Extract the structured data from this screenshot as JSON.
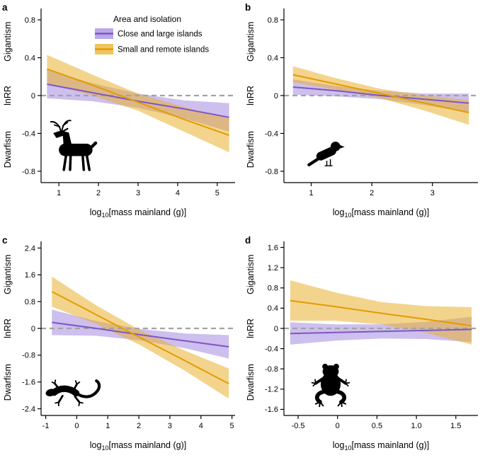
{
  "legend": {
    "title": "Area and isolation",
    "entries": [
      {
        "name": "close",
        "label": "Close and large islands"
      },
      {
        "name": "small",
        "label": "Small and remote islands"
      }
    ]
  },
  "colors": {
    "close_line": "#7f56c5",
    "close_band": "#a48be0",
    "small_line": "#e39c00",
    "small_band": "#eab02f",
    "zero_line": "#a3a3a3",
    "axis": "#000000",
    "silhouette": "#000000"
  },
  "axes": {
    "y_label_top": "Gigantism",
    "y_label_mid": "lnRR",
    "y_label_bottom": "Dwarfism",
    "x_label_pre": "log",
    "x_label_sub": "10",
    "x_label_post": "[mass mainland (g)]"
  },
  "chart_data": [
    {
      "type": "line",
      "panel": "a",
      "animal": "deer",
      "legend": true,
      "xlim": [
        0.55,
        5.45
      ],
      "ylim": [
        -0.92,
        0.92
      ],
      "xticks": {
        "values": [
          1,
          2,
          3,
          4,
          5
        ],
        "labels": [
          "1",
          "2",
          "3",
          "4",
          "5"
        ]
      },
      "yticks": {
        "values": [
          -0.8,
          -0.4,
          0,
          0.4,
          0.8
        ],
        "labels": [
          "-0.8",
          "-0.4",
          "0",
          "0.4",
          "0.8"
        ]
      },
      "x": [
        0.7,
        1.85,
        3.0,
        4.15,
        5.3
      ],
      "series": [
        {
          "name": "close",
          "y": [
            0.12,
            0.03,
            -0.06,
            -0.14,
            -0.23
          ],
          "upper": [
            0.27,
            0.13,
            0.02,
            -0.05,
            -0.08
          ],
          "lower": [
            -0.03,
            -0.06,
            -0.13,
            -0.24,
            -0.38
          ]
        },
        {
          "name": "small",
          "y": [
            0.28,
            0.11,
            -0.07,
            -0.25,
            -0.42
          ],
          "upper": [
            0.43,
            0.22,
            0.02,
            -0.12,
            -0.24
          ],
          "lower": [
            0.13,
            0.0,
            -0.16,
            -0.38,
            -0.6
          ]
        }
      ]
    },
    {
      "type": "line",
      "panel": "b",
      "animal": "bird",
      "legend": false,
      "xlim": [
        0.55,
        3.75
      ],
      "ylim": [
        -0.92,
        0.92
      ],
      "xticks": {
        "values": [
          1,
          2,
          3
        ],
        "labels": [
          "1",
          "2",
          "3"
        ]
      },
      "yticks": {
        "values": [
          -0.8,
          -0.4,
          0,
          0.4,
          0.8
        ],
        "labels": [
          "-0.8",
          "-0.4",
          "0",
          "0.4",
          "0.8"
        ]
      },
      "x": [
        0.7,
        1.425,
        2.15,
        2.875,
        3.6
      ],
      "series": [
        {
          "name": "close",
          "y": [
            0.09,
            0.05,
            0.0,
            -0.04,
            -0.08
          ],
          "upper": [
            0.17,
            0.1,
            0.05,
            0.02,
            0.02
          ],
          "lower": [
            0.01,
            -0.01,
            -0.04,
            -0.1,
            -0.18
          ]
        },
        {
          "name": "small",
          "y": [
            0.22,
            0.12,
            0.02,
            -0.08,
            -0.18
          ],
          "upper": [
            0.31,
            0.18,
            0.07,
            0.0,
            -0.05
          ],
          "lower": [
            0.14,
            0.06,
            -0.03,
            -0.16,
            -0.31
          ]
        }
      ]
    },
    {
      "type": "line",
      "panel": "c",
      "animal": "lizard",
      "legend": false,
      "xlim": [
        -1.15,
        5.1
      ],
      "ylim": [
        -2.6,
        2.6
      ],
      "xticks": {
        "values": [
          -1,
          0,
          1,
          2,
          3,
          4,
          5
        ],
        "labels": [
          "-1",
          "0",
          "1",
          "2",
          "3",
          "4",
          "5"
        ]
      },
      "yticks": {
        "values": [
          -2.4,
          -1.6,
          -0.8,
          0,
          0.8,
          1.6,
          2.4
        ],
        "labels": [
          "-2.4",
          "-1.6",
          "-0.8",
          "0",
          "0.8",
          "1.6",
          "2.4"
        ]
      },
      "x": [
        -0.8,
        0.625,
        2.05,
        3.475,
        4.9
      ],
      "series": [
        {
          "name": "close",
          "y": [
            0.18,
            0.0,
            -0.19,
            -0.37,
            -0.55
          ],
          "upper": [
            0.56,
            0.22,
            -0.02,
            -0.15,
            -0.2
          ],
          "lower": [
            -0.2,
            -0.22,
            -0.36,
            -0.59,
            -0.9
          ]
        },
        {
          "name": "small",
          "y": [
            1.1,
            0.41,
            -0.28,
            -0.96,
            -1.65
          ],
          "upper": [
            1.55,
            0.69,
            -0.06,
            -0.66,
            -1.2
          ],
          "lower": [
            0.65,
            0.13,
            -0.5,
            -1.26,
            -2.1
          ]
        }
      ]
    },
    {
      "type": "line",
      "panel": "d",
      "animal": "frog",
      "legend": false,
      "xlim": [
        -0.68,
        1.78
      ],
      "ylim": [
        -1.72,
        1.72
      ],
      "xticks": {
        "values": [
          -0.5,
          0,
          0.5,
          1,
          1.5
        ],
        "labels": [
          "-0.5",
          "0",
          "0.5",
          "1.0",
          "1.5"
        ]
      },
      "yticks": {
        "values": [
          -1.6,
          -1.2,
          -0.8,
          -0.4,
          0,
          0.4,
          0.8,
          1.2,
          1.6
        ],
        "labels": [
          "-1.6",
          "-1.2",
          "-0.8",
          "-0.4",
          "0",
          "0.4",
          "0.8",
          "1.2",
          "1.6"
        ]
      },
      "x": [
        -0.6,
        -0.025,
        0.55,
        1.125,
        1.7
      ],
      "series": [
        {
          "name": "close",
          "y": [
            -0.1,
            -0.08,
            -0.06,
            -0.04,
            -0.02
          ],
          "upper": [
            0.12,
            0.08,
            0.08,
            0.13,
            0.23
          ],
          "lower": [
            -0.32,
            -0.24,
            -0.2,
            -0.21,
            -0.27
          ]
        },
        {
          "name": "small",
          "y": [
            0.55,
            0.43,
            0.3,
            0.18,
            0.05
          ],
          "upper": [
            0.95,
            0.71,
            0.52,
            0.44,
            0.42
          ],
          "lower": [
            0.15,
            0.15,
            0.08,
            -0.09,
            -0.32
          ]
        }
      ]
    }
  ]
}
